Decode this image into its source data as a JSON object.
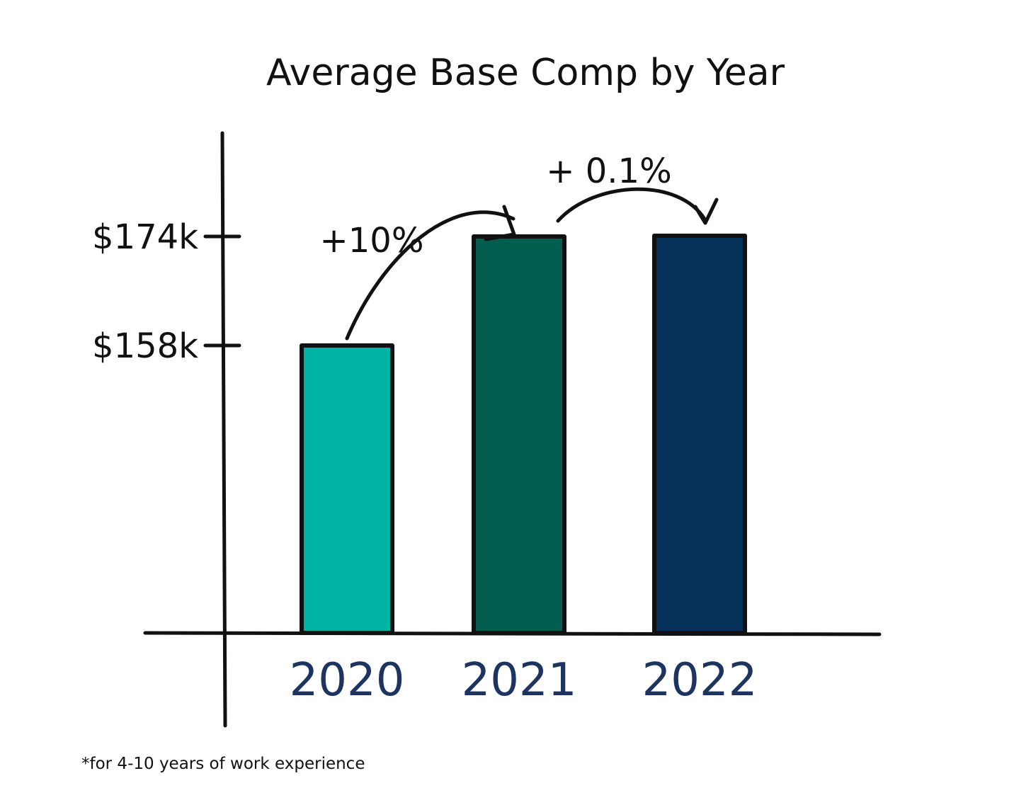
{
  "chart_data": {
    "type": "bar",
    "title": "Average Base Comp by Year",
    "categories": [
      "2020",
      "2021",
      "2022"
    ],
    "values": [
      158000,
      174000,
      174100
    ],
    "yticks": [
      {
        "value": 158000,
        "label": "$158k"
      },
      {
        "value": 174000,
        "label": "$174k"
      }
    ],
    "annotations": [
      {
        "from": "2020",
        "to": "2021",
        "label": "+10%"
      },
      {
        "from": "2021",
        "to": "2022",
        "label": "+ 0.1%"
      }
    ],
    "footnote": "*for 4-10 years of work experience",
    "colors": [
      "#00b3a4",
      "#035e50",
      "#04305a"
    ],
    "category_label_color": "#1d3461",
    "grid": false,
    "legend": "none"
  }
}
